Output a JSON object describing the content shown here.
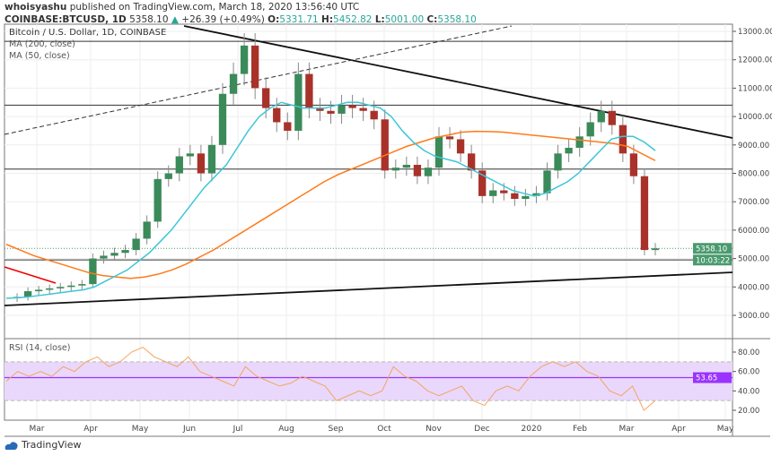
{
  "header": {
    "author": "whoisyashu",
    "published": "published on TradingView.com, March 18, 2020 13:56:40 UTC",
    "symbol": "COINBASE:BTCUSD, 1D",
    "last": "5358.10",
    "change": "+26.39 (+0.49%)",
    "o_label": "O:",
    "o": "5331.71",
    "h_label": "H:",
    "h": "5452.82",
    "l_label": "L:",
    "l": "5001.00",
    "c_label": "C:",
    "c": "5358.10"
  },
  "legend": {
    "title": "Bitcoin / U.S. Dollar, 1D, COINBASE",
    "ma200": "MA (200, close)",
    "ma50": "MA (50, close)",
    "rsi": "RSI (14, close)"
  },
  "price_tag": "5358.10",
  "countdown": "10:03:22",
  "rsi_tag": "53.65",
  "logo": "TradingView",
  "colors": {
    "up": "#3b8a5a",
    "down": "#a8322a",
    "ma50": "#3dc6d6",
    "ma200": "#ff7a1a",
    "rsi": "#f4a460",
    "rsi_band": "#e9d8fb",
    "rsi_line": "#9933ff",
    "tag": "#4a9a6e"
  },
  "chart_data": [
    {
      "type": "candlestick",
      "ylim": [
        3000,
        13000
      ],
      "grid": true,
      "yticks": [
        "13000.00",
        "12000.00",
        "11000.00",
        "10000.00",
        "9000.00",
        "8000.00",
        "7000.00",
        "6000.00",
        "5000.00",
        "4000.00",
        "3000.00"
      ],
      "xticks": [
        "Mar",
        "Apr",
        "May",
        "Jun",
        "Jul",
        "Aug",
        "Sep",
        "Oct",
        "Nov",
        "Dec",
        "2020",
        "Feb",
        "Mar",
        "Apr",
        "May"
      ],
      "closes": [
        3600,
        3650,
        3850,
        3900,
        3950,
        4000,
        4050,
        4100,
        5000,
        5100,
        5200,
        5300,
        5700,
        6300,
        7800,
        8000,
        8600,
        8700,
        8000,
        9000,
        10800,
        11500,
        12500,
        11000,
        10300,
        9800,
        9500,
        11500,
        10300,
        10200,
        10100,
        10400,
        10300,
        10200,
        9900,
        8100,
        8200,
        8300,
        7900,
        8200,
        9300,
        9200,
        8700,
        8100,
        7200,
        7400,
        7300,
        7100,
        7200,
        7300,
        8100,
        8700,
        8900,
        9300,
        9800,
        10200,
        9700,
        8700,
        7900,
        5300,
        5358
      ],
      "ma50": [
        3600,
        3620,
        3650,
        3700,
        3750,
        3800,
        3850,
        3900,
        4000,
        4200,
        4400,
        4600,
        4900,
        5200,
        5600,
        6000,
        6500,
        7000,
        7500,
        7900,
        8300,
        8900,
        9500,
        10000,
        10300,
        10500,
        10400,
        10300,
        10300,
        10300,
        10400,
        10500,
        10500,
        10400,
        10300,
        10000,
        9500,
        9100,
        8800,
        8600,
        8500,
        8400,
        8200,
        8000,
        7800,
        7600,
        7400,
        7300,
        7200,
        7300,
        7500,
        7700,
        8000,
        8400,
        8800,
        9200,
        9300,
        9300,
        9100,
        8800
      ],
      "ma200": [
        5500,
        5300,
        5100,
        4950,
        4800,
        4650,
        4500,
        4400,
        4350,
        4300,
        4350,
        4450,
        4600,
        4800,
        5050,
        5300,
        5600,
        5900,
        6200,
        6500,
        6800,
        7100,
        7400,
        7700,
        7950,
        8150,
        8350,
        8550,
        8750,
        8950,
        9100,
        9250,
        9350,
        9450,
        9480,
        9470,
        9450,
        9400,
        9350,
        9300,
        9250,
        9200,
        9150,
        9100,
        9050,
        8950,
        8700,
        8450
      ],
      "hlines": [
        12650,
        10400,
        8150,
        4950
      ],
      "rsi": {
        "ylim": [
          10,
          90
        ],
        "yticks": [
          "80.00",
          "60.00",
          "40.00",
          "20.00"
        ],
        "bands": [
          30,
          70
        ],
        "last": 53.65,
        "values": [
          50,
          60,
          55,
          60,
          55,
          65,
          60,
          70,
          75,
          65,
          70,
          80,
          85,
          75,
          70,
          65,
          75,
          60,
          55,
          50,
          45,
          65,
          55,
          50,
          45,
          48,
          55,
          50,
          45,
          30,
          35,
          40,
          35,
          40,
          65,
          55,
          50,
          40,
          35,
          40,
          45,
          30,
          25,
          40,
          45,
          40,
          55,
          65,
          70,
          65,
          70,
          60,
          55,
          40,
          35,
          45,
          20,
          30
        ]
      }
    }
  ]
}
